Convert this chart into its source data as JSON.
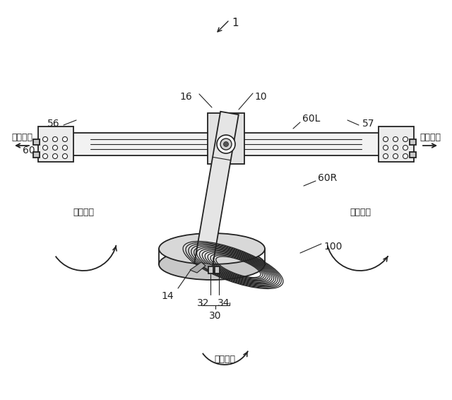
{
  "bg_color": "#ffffff",
  "line_color": "#222222",
  "figsize": [
    6.4,
    5.66
  ],
  "dpi": 100,
  "labels": {
    "ref1": "1",
    "ref10": "10",
    "ref14": "14",
    "ref16": "16",
    "ref30": "30",
    "ref32": "32",
    "ref34": "34",
    "ref56": "56",
    "ref57": "57",
    "ref60": "60",
    "ref60L": "60L",
    "ref60R": "60R",
    "ref100": "100",
    "left_label": "手前方向",
    "right_label": "前方方向",
    "rotation_label": "回転方向"
  }
}
